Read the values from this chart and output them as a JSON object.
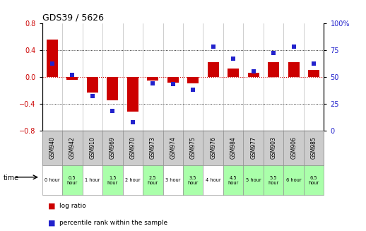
{
  "title": "GDS39 / 5626",
  "samples": [
    "GSM940",
    "GSM942",
    "GSM910",
    "GSM969",
    "GSM970",
    "GSM973",
    "GSM974",
    "GSM975",
    "GSM976",
    "GSM984",
    "GSM977",
    "GSM903",
    "GSM906",
    "GSM985"
  ],
  "time_labels": [
    "0 hour",
    "0.5\nhour",
    "1 hour",
    "1.5\nhour",
    "2 hour",
    "2.5\nhour",
    "3 hour",
    "3.5\nhour",
    "4 hour",
    "4.5\nhour",
    "5 hour",
    "5.5\nhour",
    "6 hour",
    "6.5\nhour"
  ],
  "log_ratio": [
    0.55,
    -0.04,
    -0.23,
    -0.35,
    -0.52,
    -0.06,
    -0.09,
    -0.1,
    0.22,
    0.12,
    0.06,
    0.22,
    0.22,
    0.1
  ],
  "percentile": [
    62,
    52,
    32,
    18,
    8,
    44,
    43,
    38,
    78,
    67,
    55,
    72,
    78,
    62
  ],
  "ylim_left": [
    -0.8,
    0.8
  ],
  "ylim_right": [
    0,
    100
  ],
  "yticks_left": [
    -0.8,
    -0.4,
    0.0,
    0.4,
    0.8
  ],
  "yticks_right": [
    0,
    25,
    50,
    75,
    100
  ],
  "bar_color": "#cc0000",
  "dot_color": "#2222cc",
  "bg_color": "#ffffff",
  "sample_bg_color": "#cccccc",
  "dotted_zero_color": "#cc0000",
  "time_bg_colors": [
    "#ffffff",
    "#aaffaa",
    "#ffffff",
    "#aaffaa",
    "#ffffff",
    "#aaffaa",
    "#ffffff",
    "#aaffaa",
    "#ffffff",
    "#aaffaa",
    "#aaffaa",
    "#aaffaa",
    "#aaffaa",
    "#aaffaa"
  ],
  "legend_log_ratio": "log ratio",
  "legend_percentile": "percentile rank within the sample"
}
